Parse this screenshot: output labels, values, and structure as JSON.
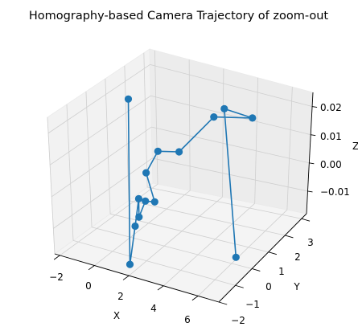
{
  "chart_data": {
    "type": "line",
    "projection": "3d",
    "title": "Homography-based Camera Trajectory of zoom-out",
    "xlabel": "X",
    "ylabel": "Y",
    "zlabel": "Z",
    "marker": "circle",
    "grid": true,
    "color": "#1f77b4",
    "xlim": [
      -2.3,
      7.2
    ],
    "ylim": [
      -2.0,
      3.3
    ],
    "zlim": [
      -0.018,
      0.025
    ],
    "x_ticks": [
      "−2",
      "0",
      "2",
      "4",
      "6"
    ],
    "y_ticks": [
      "−2",
      "−1",
      "0",
      "1",
      "2",
      "3"
    ],
    "z_ticks": [
      "−0.01",
      "0.00",
      "0.01",
      "0.02"
    ],
    "series": [
      {
        "x": [
          -1.9,
          1.3,
          0.65,
          0.55,
          0.85,
          1.05,
          1.2,
          0.5,
          0.7,
          1.6,
          3.3,
          4.1,
          2.7,
          6.2
        ],
        "y": [
          1.9,
          -1.3,
          -0.35,
          0.0,
          -0.3,
          -0.1,
          0.25,
          0.5,
          1.0,
          1.3,
          1.7,
          3.0,
          2.8,
          -0.1
        ],
        "z": [
          0.015,
          -0.0185,
          -0.0115,
          -0.0045,
          -0.0085,
          -0.004,
          -0.0055,
          0.0015,
          0.0065,
          0.0065,
          0.0185,
          0.014,
          0.0155,
          -0.0135
        ]
      }
    ]
  }
}
